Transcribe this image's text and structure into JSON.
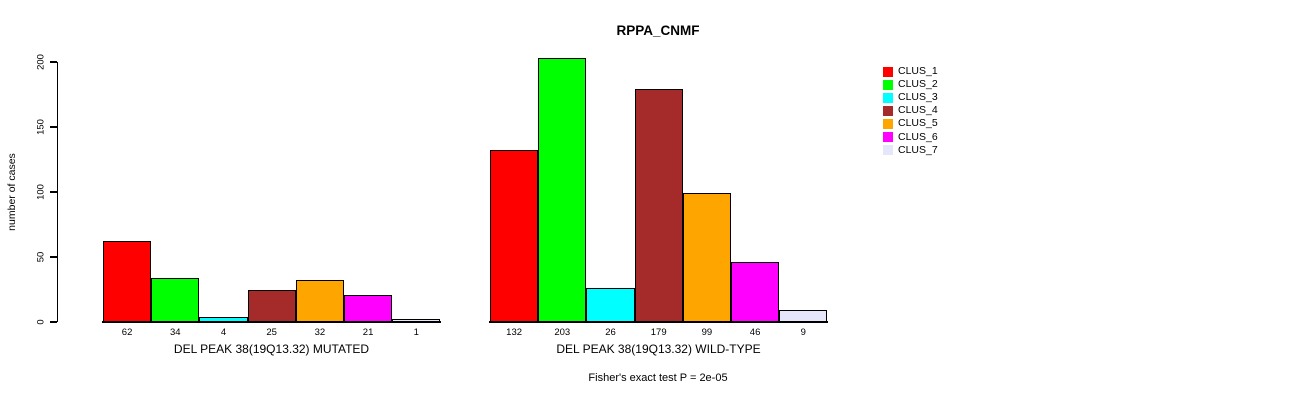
{
  "title": "RPPA_CNMF",
  "y_axis": {
    "label": "number of cases"
  },
  "footer": "Fisher's exact test P = 2e-05",
  "legend": {
    "items": [
      {
        "label": "CLUS_1",
        "color": "#FF0000"
      },
      {
        "label": "CLUS_2",
        "color": "#00FF00"
      },
      {
        "label": "CLUS_3",
        "color": "#00FFFF"
      },
      {
        "label": "CLUS_4",
        "color": "#A52A2A"
      },
      {
        "label": "CLUS_5",
        "color": "#FFA500"
      },
      {
        "label": "CLUS_6",
        "color": "#FF00FF"
      },
      {
        "label": "CLUS_7",
        "color": "#E6E6FA"
      }
    ]
  },
  "chart_data": {
    "type": "bar",
    "title": "RPPA_CNMF",
    "xlabel": "",
    "ylabel": "number of cases",
    "ylim": [
      0,
      200
    ],
    "yticks": [
      0,
      50,
      100,
      150,
      200
    ],
    "grid": false,
    "legend_position": "right",
    "bar_value_labels_shown": true,
    "categories": [
      "DEL PEAK 38(19Q13.32) MUTATED",
      "DEL PEAK 38(19Q13.32) WILD-TYPE"
    ],
    "series": [
      {
        "name": "CLUS_1",
        "color": "#FF0000",
        "values": [
          62,
          132
        ]
      },
      {
        "name": "CLUS_2",
        "color": "#00FF00",
        "values": [
          34,
          203
        ]
      },
      {
        "name": "CLUS_3",
        "color": "#00FFFF",
        "values": [
          4,
          26
        ]
      },
      {
        "name": "CLUS_4",
        "color": "#A52A2A",
        "values": [
          25,
          179
        ]
      },
      {
        "name": "CLUS_5",
        "color": "#FFA500",
        "values": [
          32,
          99
        ]
      },
      {
        "name": "CLUS_6",
        "color": "#FF00FF",
        "values": [
          21,
          46
        ]
      },
      {
        "name": "CLUS_7",
        "color": "#E6E6FA",
        "values": [
          1,
          9
        ]
      }
    ],
    "annotation": "Fisher's exact test P = 2e-05"
  }
}
